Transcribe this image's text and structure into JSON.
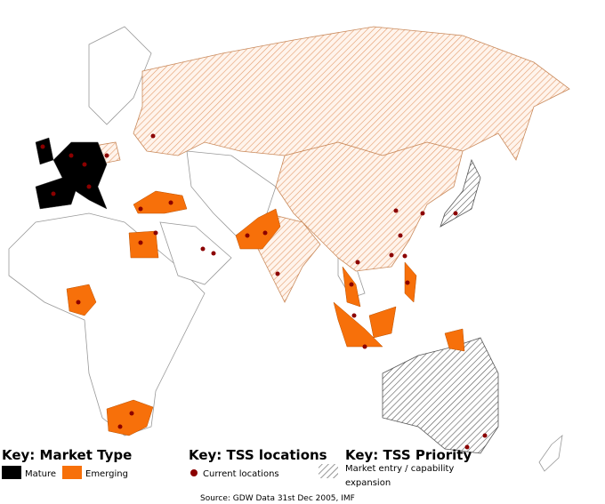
{
  "legend": {
    "market_type": {
      "title": "Key: Market Type",
      "items": [
        "Mature",
        "Emerging"
      ]
    },
    "tss_locations": {
      "title": "Key: TSS locations",
      "items": [
        "Current locations"
      ]
    },
    "tss_priority": {
      "title": "Key: TSS Priority",
      "items": [
        "Market entry / capability",
        "expansion"
      ]
    }
  },
  "source": "Source: GDW Data 31st Dec 2005, IMF"
}
